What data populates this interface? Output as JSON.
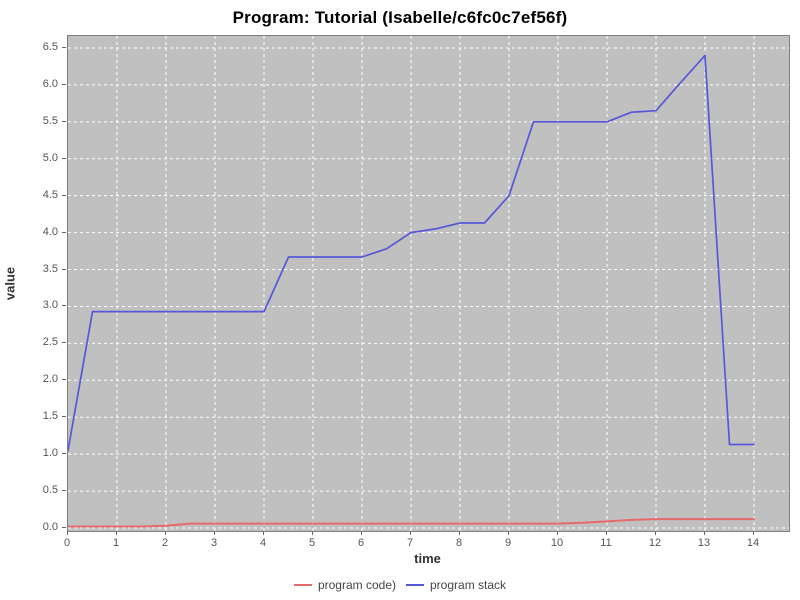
{
  "window": {
    "title": "Program: Tutorial (Isabelle/c6fc0c7ef56f)"
  },
  "colors": {
    "plot_background": "#c0c0c0",
    "plot_border": "#7f7f7f",
    "gridline": "#ffffff",
    "tick": "#666666",
    "tick_text": "#555555",
    "axis_label_text": "#333333",
    "series_code": "#e56b6b",
    "series_stack": "#5757d9"
  },
  "chart_data": {
    "type": "line",
    "title": "Program: Tutorial (Isabelle/c6fc0c7ef56f)",
    "xlabel": "time",
    "ylabel": "value",
    "xlim": [
      0,
      14.7
    ],
    "ylim": [
      0,
      6.65
    ],
    "grid": true,
    "legend_position": "bottom-center",
    "x_ticks": [
      "0",
      "1",
      "2",
      "3",
      "4",
      "5",
      "6",
      "7",
      "8",
      "9",
      "10",
      "11",
      "12",
      "13",
      "14"
    ],
    "y_ticks": [
      "0.0",
      "0.5",
      "1.0",
      "1.5",
      "2.0",
      "2.5",
      "3.0",
      "3.5",
      "4.0",
      "4.5",
      "5.0",
      "5.5",
      "6.0",
      "6.5"
    ],
    "x": [
      0,
      0.5,
      1,
      1.5,
      2,
      2.5,
      3,
      3.5,
      4,
      4.5,
      5,
      5.5,
      6,
      6.5,
      7,
      7.5,
      8,
      8.5,
      9,
      9.5,
      10,
      10.5,
      11,
      11.5,
      12,
      12.5,
      13,
      13.5,
      14
    ],
    "series": [
      {
        "name": "program code)",
        "color": "#e56b6b",
        "values": [
          0.02,
          0.02,
          0.02,
          0.02,
          0.03,
          0.06,
          0.06,
          0.06,
          0.06,
          0.06,
          0.06,
          0.06,
          0.06,
          0.06,
          0.06,
          0.06,
          0.06,
          0.06,
          0.06,
          0.06,
          0.06,
          0.07,
          0.09,
          0.11,
          0.12,
          0.12,
          0.12,
          0.12,
          0.12
        ]
      },
      {
        "name": "program stack",
        "color": "#5757d9",
        "values": [
          1.05,
          2.93,
          2.93,
          2.93,
          2.93,
          2.93,
          2.93,
          2.93,
          2.93,
          3.67,
          3.67,
          3.67,
          3.67,
          3.78,
          4.0,
          4.05,
          4.13,
          4.13,
          4.5,
          5.5,
          5.5,
          5.5,
          5.5,
          5.63,
          5.65,
          6.03,
          6.4,
          1.13,
          1.13
        ]
      }
    ]
  }
}
